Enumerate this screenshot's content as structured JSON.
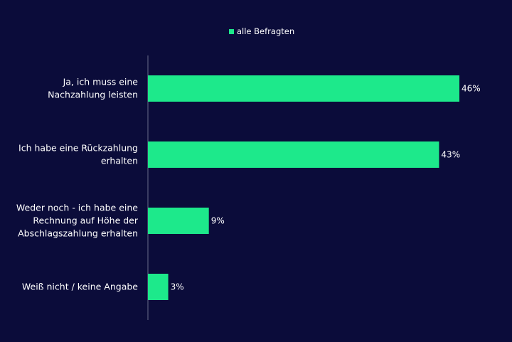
{
  "chart_data": {
    "type": "bar",
    "orientation": "horizontal",
    "categories": [
      [
        "Ja, ich muss eine",
        "Nachzahlung leisten"
      ],
      [
        "Ich habe eine Rückzahlung",
        "erhalten"
      ],
      [
        "Weder noch - ich habe eine",
        "Rechnung auf Höhe der",
        "Abschlagszahlung erhalten"
      ],
      [
        "Weiß nicht / keine Angabe"
      ]
    ],
    "series": [
      {
        "name": "alle Befragten",
        "values": [
          46,
          43,
          9,
          3
        ],
        "labels": [
          "46%",
          "43%",
          "9%",
          "3%"
        ]
      }
    ],
    "xlim": [
      0,
      50
    ],
    "grid": false,
    "legend_position": "top-center",
    "colors": {
      "background": "#0b0c3a",
      "bar": "#1de98b",
      "axis": "#6a6c8a",
      "text": "#ffffff"
    }
  }
}
